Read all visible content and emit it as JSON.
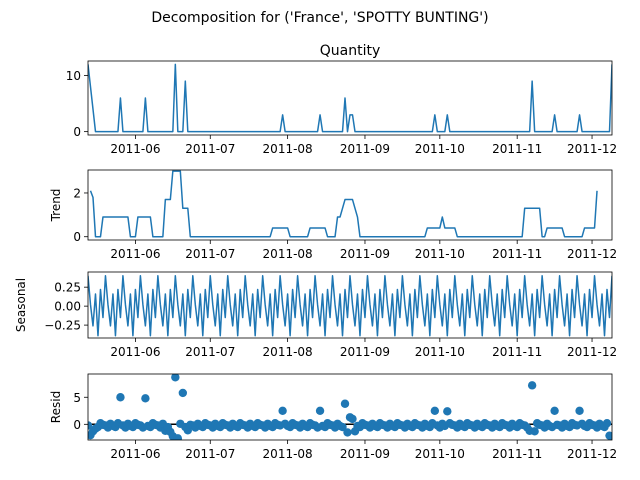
{
  "chart_data": {
    "type": "line",
    "suptitle": "Decomposition for ('France', 'SPOTTY BUNTING')",
    "x_range": [
      "2011-05-13",
      "2011-12-09"
    ],
    "x_ticks": [
      "2011-06",
      "2011-07",
      "2011-08",
      "2011-09",
      "2011-10",
      "2011-11",
      "2011-12"
    ],
    "color": "#1f77b4",
    "panels": [
      {
        "id": "observed",
        "title": "Quantity",
        "ylabel": "",
        "ylim": [
          -0.6,
          12.6
        ],
        "yticks": [
          "0",
          "10"
        ],
        "kind": "line",
        "points": [
          [
            "2011-05-13",
            12
          ],
          [
            "2011-05-16",
            0
          ],
          [
            "2011-05-25",
            0
          ],
          [
            "2011-05-26",
            6
          ],
          [
            "2011-05-27",
            0
          ],
          [
            "2011-06-04",
            0
          ],
          [
            "2011-06-05",
            6
          ],
          [
            "2011-06-06",
            0
          ],
          [
            "2011-06-16",
            0
          ],
          [
            "2011-06-17",
            12
          ],
          [
            "2011-06-18",
            0
          ],
          [
            "2011-06-20",
            0
          ],
          [
            "2011-06-21",
            9
          ],
          [
            "2011-06-22",
            0
          ],
          [
            "2011-07-29",
            0
          ],
          [
            "2011-07-30",
            3
          ],
          [
            "2011-07-31",
            0
          ],
          [
            "2011-08-13",
            0
          ],
          [
            "2011-08-14",
            3
          ],
          [
            "2011-08-15",
            0
          ],
          [
            "2011-08-23",
            0
          ],
          [
            "2011-08-24",
            6
          ],
          [
            "2011-08-25",
            0
          ],
          [
            "2011-08-26",
            3
          ],
          [
            "2011-08-27",
            3
          ],
          [
            "2011-08-28",
            0
          ],
          [
            "2011-09-28",
            0
          ],
          [
            "2011-09-29",
            3
          ],
          [
            "2011-09-30",
            0
          ],
          [
            "2011-10-03",
            0
          ],
          [
            "2011-10-04",
            3
          ],
          [
            "2011-10-05",
            0
          ],
          [
            "2011-11-06",
            0
          ],
          [
            "2011-11-07",
            9
          ],
          [
            "2011-11-08",
            0
          ],
          [
            "2011-11-15",
            0
          ],
          [
            "2011-11-16",
            3
          ],
          [
            "2011-11-17",
            0
          ],
          [
            "2011-11-25",
            0
          ],
          [
            "2011-11-26",
            3
          ],
          [
            "2011-11-27",
            0
          ],
          [
            "2011-12-08",
            0
          ],
          [
            "2011-12-09",
            12
          ]
        ]
      },
      {
        "id": "trend",
        "title": "",
        "ylabel": "Trend",
        "ylim": [
          -0.15,
          3.05
        ],
        "yticks": [
          "0",
          "2"
        ],
        "kind": "line",
        "points": [
          [
            "2011-05-14",
            2.1
          ],
          [
            "2011-05-15",
            1.8
          ],
          [
            "2011-05-16",
            0
          ],
          [
            "2011-05-18",
            0
          ],
          [
            "2011-05-19",
            0.9
          ],
          [
            "2011-05-29",
            0.9
          ],
          [
            "2011-05-30",
            0
          ],
          [
            "2011-06-01",
            0
          ],
          [
            "2011-06-02",
            0.9
          ],
          [
            "2011-06-07",
            0.9
          ],
          [
            "2011-06-08",
            0
          ],
          [
            "2011-06-12",
            0
          ],
          [
            "2011-06-13",
            1.7
          ],
          [
            "2011-06-15",
            1.7
          ],
          [
            "2011-06-16",
            3.0
          ],
          [
            "2011-06-19",
            3.0
          ],
          [
            "2011-06-20",
            1.3
          ],
          [
            "2011-06-22",
            1.3
          ],
          [
            "2011-06-23",
            0
          ],
          [
            "2011-07-25",
            0
          ],
          [
            "2011-07-26",
            0.4
          ],
          [
            "2011-08-01",
            0.4
          ],
          [
            "2011-08-02",
            0
          ],
          [
            "2011-08-09",
            0
          ],
          [
            "2011-08-10",
            0.4
          ],
          [
            "2011-08-16",
            0.4
          ],
          [
            "2011-08-17",
            0
          ],
          [
            "2011-08-20",
            0
          ],
          [
            "2011-08-21",
            0.9
          ],
          [
            "2011-08-22",
            0.9
          ],
          [
            "2011-08-23",
            1.3
          ],
          [
            "2011-08-24",
            1.7
          ],
          [
            "2011-08-27",
            1.7
          ],
          [
            "2011-08-28",
            1.3
          ],
          [
            "2011-08-29",
            0.9
          ],
          [
            "2011-08-30",
            0
          ],
          [
            "2011-09-25",
            0
          ],
          [
            "2011-09-26",
            0.4
          ],
          [
            "2011-10-01",
            0.4
          ],
          [
            "2011-10-02",
            0.9
          ],
          [
            "2011-10-03",
            0.4
          ],
          [
            "2011-10-07",
            0.4
          ],
          [
            "2011-10-08",
            0
          ],
          [
            "2011-11-03",
            0
          ],
          [
            "2011-11-04",
            1.3
          ],
          [
            "2011-11-10",
            1.3
          ],
          [
            "2011-11-11",
            0
          ],
          [
            "2011-11-12",
            0
          ],
          [
            "2011-11-13",
            0.4
          ],
          [
            "2011-11-19",
            0.4
          ],
          [
            "2011-11-20",
            0
          ],
          [
            "2011-11-27",
            0
          ],
          [
            "2011-11-28",
            0.4
          ],
          [
            "2011-12-02",
            0.4
          ],
          [
            "2011-12-03",
            2.1
          ]
        ]
      },
      {
        "id": "seasonal",
        "title": "",
        "ylabel": "Seasonal",
        "ylim": [
          -0.42,
          0.45
        ],
        "yticks": [
          "0.25",
          "0.00",
          "−0.25"
        ],
        "kind": "periodic",
        "start": "2011-05-13",
        "end": "2011-12-09",
        "period_days": 7,
        "pattern": [
          0.4,
          0.02,
          -0.26,
          0.16,
          -0.39,
          0.22,
          -0.15
        ]
      },
      {
        "id": "resid",
        "title": "",
        "ylabel": "Resid",
        "ylim": [
          -2.9,
          9.3
        ],
        "yticks": [
          "0",
          "5"
        ],
        "kind": "scatter",
        "start": "2011-05-13",
        "end": "2011-12-09",
        "base": [
          -0.2,
          -0.6,
          0.1,
          -0.3,
          -0.5,
          0.2,
          -0.1
        ],
        "overrides": [
          [
            "2011-05-14",
            -2.0
          ],
          [
            "2011-05-15",
            -1.3
          ],
          [
            "2011-05-16",
            -0.8
          ],
          [
            "2011-05-26",
            5.0
          ],
          [
            "2011-06-05",
            4.8
          ],
          [
            "2011-06-13",
            -1.2
          ],
          [
            "2011-06-15",
            -1.4
          ],
          [
            "2011-06-16",
            -2.2
          ],
          [
            "2011-06-17",
            8.7
          ],
          [
            "2011-06-18",
            -2.6
          ],
          [
            "2011-06-20",
            5.8
          ],
          [
            "2011-06-22",
            -1.1
          ],
          [
            "2011-07-30",
            2.5
          ],
          [
            "2011-08-14",
            2.5
          ],
          [
            "2011-08-24",
            3.8
          ],
          [
            "2011-08-25",
            -1.5
          ],
          [
            "2011-08-26",
            1.3
          ],
          [
            "2011-08-27",
            1.0
          ],
          [
            "2011-08-28",
            -1.3
          ],
          [
            "2011-09-29",
            2.5
          ],
          [
            "2011-10-04",
            2.4
          ],
          [
            "2011-11-06",
            -1.2
          ],
          [
            "2011-11-07",
            7.2
          ],
          [
            "2011-11-08",
            -1.3
          ],
          [
            "2011-11-16",
            2.5
          ],
          [
            "2011-11-26",
            2.5
          ],
          [
            "2011-12-08",
            -2.1
          ],
          [
            "2011-12-09",
            -2.5
          ]
        ]
      }
    ]
  }
}
